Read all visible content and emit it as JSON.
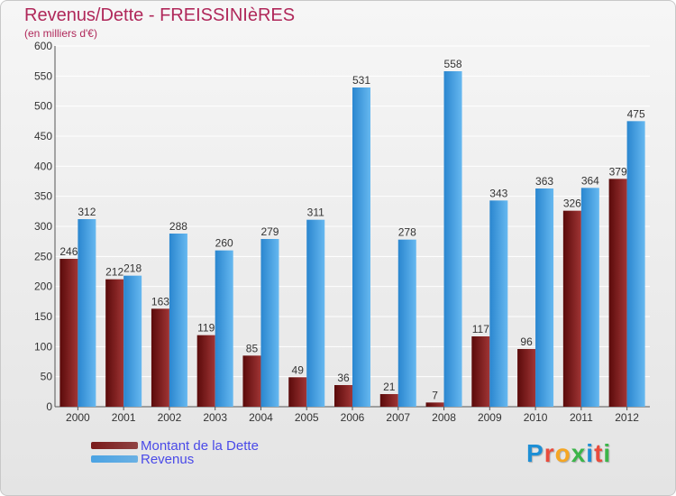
{
  "header": {
    "title": "Revenus/Dette - FREISSINIèRES",
    "subtitle": "(en milliers d'€)"
  },
  "chart_data": {
    "type": "bar",
    "title": "Revenus/Dette - FREISSINIèRES",
    "subtitle": "(en milliers d'€)",
    "xlabel": "",
    "ylabel": "",
    "ylim": [
      0,
      600
    ],
    "yticks": [
      0,
      50,
      100,
      150,
      200,
      250,
      300,
      350,
      400,
      450,
      500,
      550,
      600
    ],
    "grid": true,
    "legend_position": "bottom-left",
    "categories": [
      "2000",
      "2001",
      "2002",
      "2003",
      "2004",
      "2005",
      "2006",
      "2007",
      "2008",
      "2009",
      "2010",
      "2011",
      "2012"
    ],
    "series": [
      {
        "name": "Montant de la Dette",
        "color": "#7a1a1a",
        "values": [
          246,
          212,
          163,
          119,
          85,
          49,
          36,
          21,
          7,
          117,
          96,
          326,
          379
        ]
      },
      {
        "name": "Revenus",
        "color": "#4ba3e3",
        "values": [
          312,
          218,
          288,
          260,
          279,
          311,
          531,
          278,
          558,
          343,
          363,
          364,
          475
        ]
      }
    ]
  },
  "legend": {
    "items": [
      {
        "label": "Montant de la Dette",
        "color": "#7a1a1a"
      },
      {
        "label": "Revenus",
        "color": "#4ba3e3"
      }
    ]
  },
  "logo": {
    "text": "Proxiti",
    "letters": [
      "P",
      "r",
      "o",
      "x",
      "i",
      "t",
      "i"
    ],
    "colors": [
      "#1e8fd5",
      "#e94b3c",
      "#f5a623",
      "#3cb54a",
      "#1e8fd5",
      "#e94b3c",
      "#3cb54a"
    ]
  }
}
